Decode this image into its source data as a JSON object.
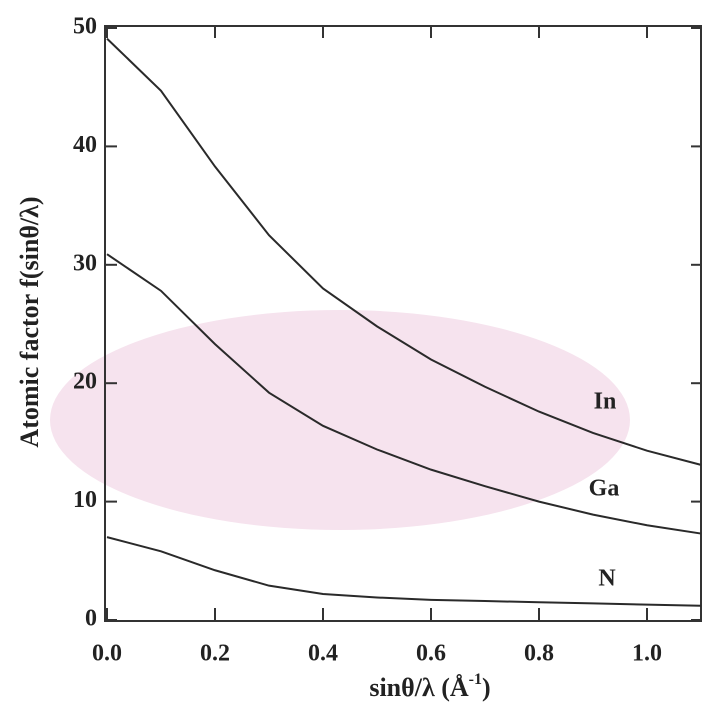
{
  "chart_data": {
    "type": "line",
    "x_label": {
      "text": "sinθ/λ (Å",
      "superscript": "-1",
      "suffix": ")"
    },
    "y_label": "Atomic factor f(sinθ/λ)",
    "x": [
      0.0,
      0.1,
      0.2,
      0.3,
      0.4,
      0.5,
      0.6,
      0.7,
      0.8,
      0.9,
      1.0,
      1.1
    ],
    "series": [
      {
        "name": "In",
        "color": "#2a2a2a",
        "values": [
          49.1,
          44.7,
          38.3,
          32.5,
          28.0,
          24.8,
          22.0,
          19.7,
          17.6,
          15.8,
          14.3,
          13.1
        ]
      },
      {
        "name": "Ga",
        "color": "#2a2a2a",
        "values": [
          30.9,
          27.8,
          23.3,
          19.2,
          16.4,
          14.4,
          12.7,
          11.3,
          10.0,
          8.9,
          8.0,
          7.3
        ]
      },
      {
        "name": "N",
        "color": "#2a2a2a",
        "values": [
          7.0,
          5.8,
          4.2,
          2.9,
          2.2,
          1.9,
          1.7,
          1.6,
          1.5,
          1.4,
          1.3,
          1.2
        ]
      }
    ],
    "xlim": [
      0,
      1.1
    ],
    "xticks": [
      {
        "value": 0,
        "label": "0.0"
      },
      0.2,
      0.4,
      0.6,
      0.8,
      {
        "value": 1,
        "label": "1.0"
      }
    ],
    "ylim": [
      0,
      50
    ],
    "yticks": [
      0,
      10,
      20,
      30,
      40,
      50
    ]
  }
}
